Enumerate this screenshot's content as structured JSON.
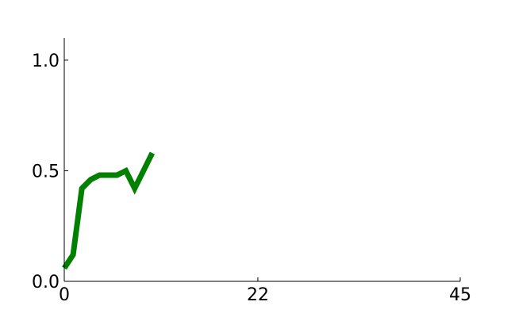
{
  "chart_data": {
    "type": "line",
    "title": "",
    "xlabel": "",
    "ylabel": "",
    "xlim": [
      0,
      45
    ],
    "ylim": [
      0,
      1.1
    ],
    "grid": false,
    "x_ticks": [
      {
        "value": 0,
        "label": "0"
      },
      {
        "value": 22,
        "label": "22"
      },
      {
        "value": 45,
        "label": "45"
      }
    ],
    "y_ticks": [
      {
        "value": 0,
        "label": "0.0"
      },
      {
        "value": 0.5,
        "label": "0.5"
      },
      {
        "value": 1.0,
        "label": "1.0"
      }
    ],
    "series": [
      {
        "color": "#008000",
        "x": [
          0,
          1,
          2,
          3,
          4,
          5,
          6,
          7,
          8,
          9,
          10
        ],
        "y": [
          0.06,
          0.12,
          0.42,
          0.46,
          0.48,
          0.48,
          0.48,
          0.5,
          0.42,
          0.5,
          0.58
        ]
      }
    ]
  }
}
